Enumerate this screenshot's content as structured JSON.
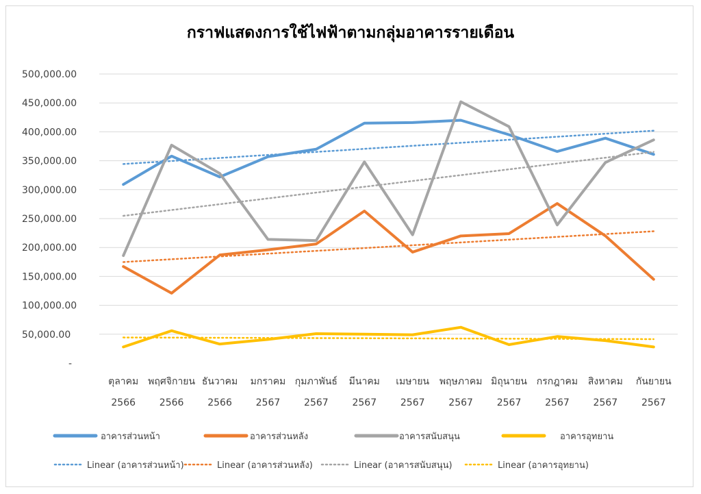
{
  "chart_data": {
    "type": "line",
    "title": "กราฟแสดงการใช้ไฟฟ้าตามกลุ่มอาคารรายเดือน",
    "categories": [
      [
        "ตุลาคม",
        "2566"
      ],
      [
        "พฤศจิกายน",
        "2566"
      ],
      [
        "ธันวาคม",
        "2566"
      ],
      [
        "มกราคม",
        "2567"
      ],
      [
        "กุมภาพันธ์",
        "2567"
      ],
      [
        "มีนาคม",
        "2567"
      ],
      [
        "เมษายน",
        "2567"
      ],
      [
        "พฤษภาคม",
        "2567"
      ],
      [
        "มิถุนายน",
        "2567"
      ],
      [
        "กรกฎาคม",
        "2567"
      ],
      [
        "สิงหาคม",
        "2567"
      ],
      [
        "กันยายน",
        "2567"
      ]
    ],
    "ylim": [
      0,
      500000
    ],
    "yticks": [
      "-",
      "50,000.00",
      "100,000.00",
      "150,000.00",
      "200,000.00",
      "250,000.00",
      "300,000.00",
      "350,000.00",
      "400,000.00",
      "450,000.00",
      "500,000.00"
    ],
    "grid": true,
    "legend_position": "bottom",
    "series": [
      {
        "name": "อาคารส่วนหน้า",
        "color": "#5b9bd5",
        "values": [
          309000,
          358000,
          322000,
          357000,
          370000,
          415000,
          416000,
          420000,
          395000,
          366000,
          389000,
          361000
        ],
        "trend_label": "Linear (อาคารส่วนหน้า)"
      },
      {
        "name": "อาคารส่วนหลัง",
        "color": "#ed7d31",
        "values": [
          167000,
          121000,
          187000,
          196000,
          206000,
          263000,
          192000,
          220000,
          224000,
          276000,
          220000,
          145000
        ],
        "trend_label": "Linear (อาคารส่วนหลัง)"
      },
      {
        "name": "อาคารสนับสนุน",
        "color": "#a5a5a5",
        "values": [
          186000,
          377000,
          328000,
          214000,
          212000,
          348000,
          222000,
          452000,
          409000,
          239000,
          347000,
          386000
        ],
        "trend_label": "Linear (อาคารสนับสนุน)"
      },
      {
        "name": "อาคารอุทยาน",
        "color": "#ffc000",
        "values": [
          28000,
          56000,
          33000,
          41000,
          51000,
          50000,
          49000,
          62000,
          32000,
          46000,
          39000,
          28000
        ],
        "trend_label": "Linear    (อาคารอุทยาน)"
      }
    ]
  }
}
